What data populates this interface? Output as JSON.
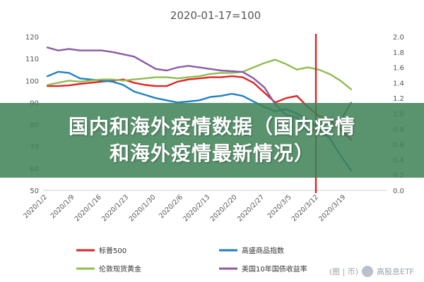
{
  "banner": {
    "line1": "国内和海外疫情数据（国内疫情",
    "line2": "和海外疫情最新情况）"
  },
  "watermark": {
    "text": "高股息ETF",
    "partial": "(图 | 币)"
  },
  "chart_data": {
    "type": "line",
    "title": "2020-01-17=100",
    "xlabel": "",
    "ylabel": "",
    "x_range": [
      0,
      62
    ],
    "ylim": [
      50,
      120
    ],
    "y2lim": [
      0.0,
      2.0
    ],
    "yticks": [
      "50",
      "60",
      "70",
      "80",
      "90",
      "100",
      "110",
      "120"
    ],
    "y2ticks": [
      "0.0",
      "0.2",
      "0.4",
      "0.6",
      "0.8",
      "1.0",
      "1.2",
      "1.4",
      "1.6",
      "1.8",
      "2.0"
    ],
    "xticks": [
      {
        "label": "2020/1/2",
        "x": 0
      },
      {
        "label": "2020/1/9",
        "x": 5
      },
      {
        "label": "2020/1/16",
        "x": 10
      },
      {
        "label": "2020/1/23",
        "x": 15
      },
      {
        "label": "2020/1/30",
        "x": 20
      },
      {
        "label": "2020/2/6",
        "x": 25
      },
      {
        "label": "2020/2/13",
        "x": 30
      },
      {
        "label": "2020/2/20",
        "x": 35
      },
      {
        "label": "2020/2/27",
        "x": 40
      },
      {
        "label": "2020/3/5",
        "x": 45
      },
      {
        "label": "2020/3/12",
        "x": 50
      },
      {
        "label": "2020/3/19",
        "x": 55
      }
    ],
    "vline": {
      "x": 49.5,
      "color": "#e02020"
    },
    "grid": false,
    "legend_placement": "bottom",
    "series": [
      {
        "name": "标普500",
        "color": "#e02424",
        "axis": "left",
        "x": [
          0,
          2,
          4,
          6,
          8,
          10,
          12,
          14,
          16,
          18,
          20,
          22,
          24,
          26,
          28,
          30,
          32,
          34,
          36,
          38,
          40,
          42,
          44,
          46,
          48,
          50,
          52,
          54,
          56
        ],
        "y": [
          97.5,
          97.5,
          97.8,
          98.5,
          99,
          99.5,
          100,
          100.5,
          99,
          98,
          97.5,
          97.5,
          99.5,
          100.5,
          101,
          101.5,
          101.5,
          102,
          101.5,
          99,
          94.5,
          90,
          92,
          93,
          88,
          84,
          82,
          78,
          73
        ]
      },
      {
        "name": "高盛商品指数",
        "color": "#1f7fc4",
        "axis": "left",
        "x": [
          0,
          2,
          4,
          6,
          8,
          10,
          12,
          14,
          16,
          18,
          20,
          22,
          24,
          26,
          28,
          30,
          32,
          34,
          36,
          38,
          40,
          42,
          44,
          46,
          48,
          50,
          52,
          54,
          56
        ],
        "y": [
          102,
          104,
          103.5,
          101,
          100.5,
          100,
          99.5,
          98,
          95,
          93.5,
          92,
          91,
          90,
          90.5,
          91,
          92.5,
          93,
          94,
          93,
          90.5,
          88,
          86,
          87,
          85,
          82,
          78,
          74,
          66,
          59
        ]
      },
      {
        "name": "伦敦现货黄金",
        "color": "#8fbc4f",
        "axis": "left",
        "x": [
          0,
          2,
          4,
          6,
          8,
          10,
          12,
          14,
          16,
          18,
          20,
          22,
          24,
          26,
          28,
          30,
          32,
          34,
          36,
          38,
          40,
          42,
          44,
          46,
          48,
          50,
          52,
          54,
          56
        ],
        "y": [
          98,
          99,
          100,
          99.5,
          100,
          100.5,
          100.5,
          100,
          100.5,
          101,
          101.5,
          101.5,
          101,
          101.5,
          102,
          103,
          103.5,
          103.5,
          104,
          106,
          108,
          109.5,
          107.5,
          105,
          106,
          105,
          103,
          100,
          96
        ]
      },
      {
        "name": "美国10年国债收益率",
        "color": "#8a5aa6",
        "axis": "right",
        "x": [
          0,
          2,
          4,
          6,
          8,
          10,
          12,
          14,
          16,
          18,
          20,
          22,
          24,
          26,
          28,
          30,
          32,
          34,
          36,
          38,
          40,
          42,
          44,
          46,
          48,
          50,
          52,
          54,
          56
        ],
        "y": [
          1.86,
          1.82,
          1.84,
          1.82,
          1.82,
          1.82,
          1.8,
          1.77,
          1.74,
          1.66,
          1.58,
          1.56,
          1.6,
          1.62,
          1.6,
          1.58,
          1.56,
          1.55,
          1.54,
          1.46,
          1.34,
          1.12,
          0.98,
          0.95,
          0.76,
          0.82,
          0.94,
          0.9,
          1.14
        ]
      }
    ]
  }
}
